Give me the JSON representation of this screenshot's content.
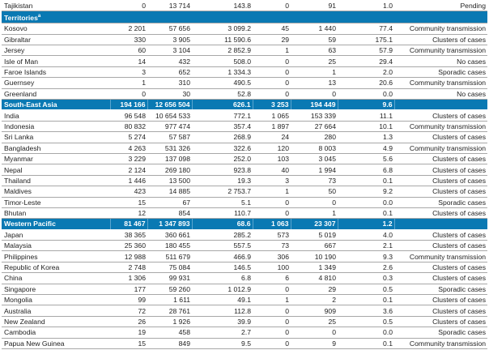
{
  "colors": {
    "region_header": "#0a79b3"
  },
  "top_rows": [
    {
      "name": "Tajikistan",
      "c1": "0",
      "c2": "13 714",
      "c3": "143.8",
      "c4": "0",
      "c5": "91",
      "c6": "1.0",
      "c7": "Pending"
    }
  ],
  "territories": {
    "label": "Territories",
    "marker": "a",
    "rows": [
      {
        "name": "Kosovo",
        "c1": "2 201",
        "c2": "57 656",
        "c3": "3 099.2",
        "c4": "45",
        "c5": "1 440",
        "c6": "77.4",
        "c7": "Community transmission"
      },
      {
        "name": "Gibraltar",
        "c1": "330",
        "c2": "3 905",
        "c3": "11 590.6",
        "c4": "29",
        "c5": "59",
        "c6": "175.1",
        "c7": "Clusters of cases"
      },
      {
        "name": "Jersey",
        "c1": "60",
        "c2": "3 104",
        "c3": "2 852.9",
        "c4": "1",
        "c5": "63",
        "c6": "57.9",
        "c7": "Community transmission"
      },
      {
        "name": "Isle of Man",
        "c1": "14",
        "c2": "432",
        "c3": "508.0",
        "c4": "0",
        "c5": "25",
        "c6": "29.4",
        "c7": "No cases"
      },
      {
        "name": "Faroe Islands",
        "c1": "3",
        "c2": "652",
        "c3": "1 334.3",
        "c4": "0",
        "c5": "1",
        "c6": "2.0",
        "c7": "Sporadic cases"
      },
      {
        "name": "Guernsey",
        "c1": "1",
        "c2": "310",
        "c3": "490.5",
        "c4": "0",
        "c5": "13",
        "c6": "20.6",
        "c7": "Community transmission"
      },
      {
        "name": "Greenland",
        "c1": "0",
        "c2": "30",
        "c3": "52.8",
        "c4": "0",
        "c5": "0",
        "c6": "0.0",
        "c7": "No cases"
      }
    ]
  },
  "regions": [
    {
      "header": {
        "name": "South-East Asia",
        "c1": "194 166",
        "c2": "12 656 504",
        "c3": "626.1",
        "c4": "3 253",
        "c5": "194 449",
        "c6": "9.6",
        "c7": ""
      },
      "rows": [
        {
          "name": "India",
          "c1": "96 548",
          "c2": "10 654 533",
          "c3": "772.1",
          "c4": "1 065",
          "c5": "153 339",
          "c6": "11.1",
          "c7": "Clusters of cases"
        },
        {
          "name": "Indonesia",
          "c1": "80 832",
          "c2": "977 474",
          "c3": "357.4",
          "c4": "1 897",
          "c5": "27 664",
          "c6": "10.1",
          "c7": "Community transmission"
        },
        {
          "name": "Sri Lanka",
          "c1": "5 274",
          "c2": "57 587",
          "c3": "268.9",
          "c4": "24",
          "c5": "280",
          "c6": "1.3",
          "c7": "Clusters of cases"
        },
        {
          "name": "Bangladesh",
          "c1": "4 263",
          "c2": "531 326",
          "c3": "322.6",
          "c4": "120",
          "c5": "8 003",
          "c6": "4.9",
          "c7": "Community transmission"
        },
        {
          "name": "Myanmar",
          "c1": "3 229",
          "c2": "137 098",
          "c3": "252.0",
          "c4": "103",
          "c5": "3 045",
          "c6": "5.6",
          "c7": "Clusters of cases"
        },
        {
          "name": "Nepal",
          "c1": "2 124",
          "c2": "269 180",
          "c3": "923.8",
          "c4": "40",
          "c5": "1 994",
          "c6": "6.8",
          "c7": "Clusters of cases"
        },
        {
          "name": "Thailand",
          "c1": "1 446",
          "c2": "13 500",
          "c3": "19.3",
          "c4": "3",
          "c5": "73",
          "c6": "0.1",
          "c7": "Clusters of cases"
        },
        {
          "name": "Maldives",
          "c1": "423",
          "c2": "14 885",
          "c3": "2 753.7",
          "c4": "1",
          "c5": "50",
          "c6": "9.2",
          "c7": "Clusters of cases"
        },
        {
          "name": "Timor-Leste",
          "c1": "15",
          "c2": "67",
          "c3": "5.1",
          "c4": "0",
          "c5": "0",
          "c6": "0.0",
          "c7": "Sporadic cases"
        },
        {
          "name": "Bhutan",
          "c1": "12",
          "c2": "854",
          "c3": "110.7",
          "c4": "0",
          "c5": "1",
          "c6": "0.1",
          "c7": "Clusters of cases"
        }
      ]
    },
    {
      "header": {
        "name": "Western Pacific",
        "c1": "81 467",
        "c2": "1 347 893",
        "c3": "68.6",
        "c4": "1 063",
        "c5": "23 307",
        "c6": "1.2",
        "c7": ""
      },
      "rows": [
        {
          "name": "Japan",
          "c1": "38 365",
          "c2": "360 661",
          "c3": "285.2",
          "c4": "573",
          "c5": "5 019",
          "c6": "4.0",
          "c7": "Clusters of cases"
        },
        {
          "name": "Malaysia",
          "c1": "25 360",
          "c2": "180 455",
          "c3": "557.5",
          "c4": "73",
          "c5": "667",
          "c6": "2.1",
          "c7": "Clusters of cases"
        },
        {
          "name": "Philippines",
          "c1": "12 988",
          "c2": "511 679",
          "c3": "466.9",
          "c4": "306",
          "c5": "10 190",
          "c6": "9.3",
          "c7": "Community transmission"
        },
        {
          "name": "Republic of Korea",
          "c1": "2 748",
          "c2": "75 084",
          "c3": "146.5",
          "c4": "100",
          "c5": "1 349",
          "c6": "2.6",
          "c7": "Clusters of cases"
        },
        {
          "name": "China",
          "c1": "1 306",
          "c2": "99 931",
          "c3": "6.8",
          "c4": "6",
          "c5": "4 810",
          "c6": "0.3",
          "c7": "Clusters of cases"
        },
        {
          "name": "Singapore",
          "c1": "177",
          "c2": "59 260",
          "c3": "1 012.9",
          "c4": "0",
          "c5": "29",
          "c6": "0.5",
          "c7": "Sporadic cases"
        },
        {
          "name": "Mongolia",
          "c1": "99",
          "c2": "1 611",
          "c3": "49.1",
          "c4": "1",
          "c5": "2",
          "c6": "0.1",
          "c7": "Clusters of cases"
        },
        {
          "name": "Australia",
          "c1": "72",
          "c2": "28 761",
          "c3": "112.8",
          "c4": "0",
          "c5": "909",
          "c6": "3.6",
          "c7": "Clusters of cases"
        },
        {
          "name": "New Zealand",
          "c1": "26",
          "c2": "1 926",
          "c3": "39.9",
          "c4": "0",
          "c5": "25",
          "c6": "0.5",
          "c7": "Clusters of cases"
        },
        {
          "name": "Cambodia",
          "c1": "19",
          "c2": "458",
          "c3": "2.7",
          "c4": "0",
          "c5": "0",
          "c6": "0.0",
          "c7": "Sporadic cases"
        },
        {
          "name": "Papua New Guinea",
          "c1": "15",
          "c2": "849",
          "c3": "9.5",
          "c4": "0",
          "c5": "9",
          "c6": "0.1",
          "c7": "Community transmission"
        }
      ]
    }
  ]
}
